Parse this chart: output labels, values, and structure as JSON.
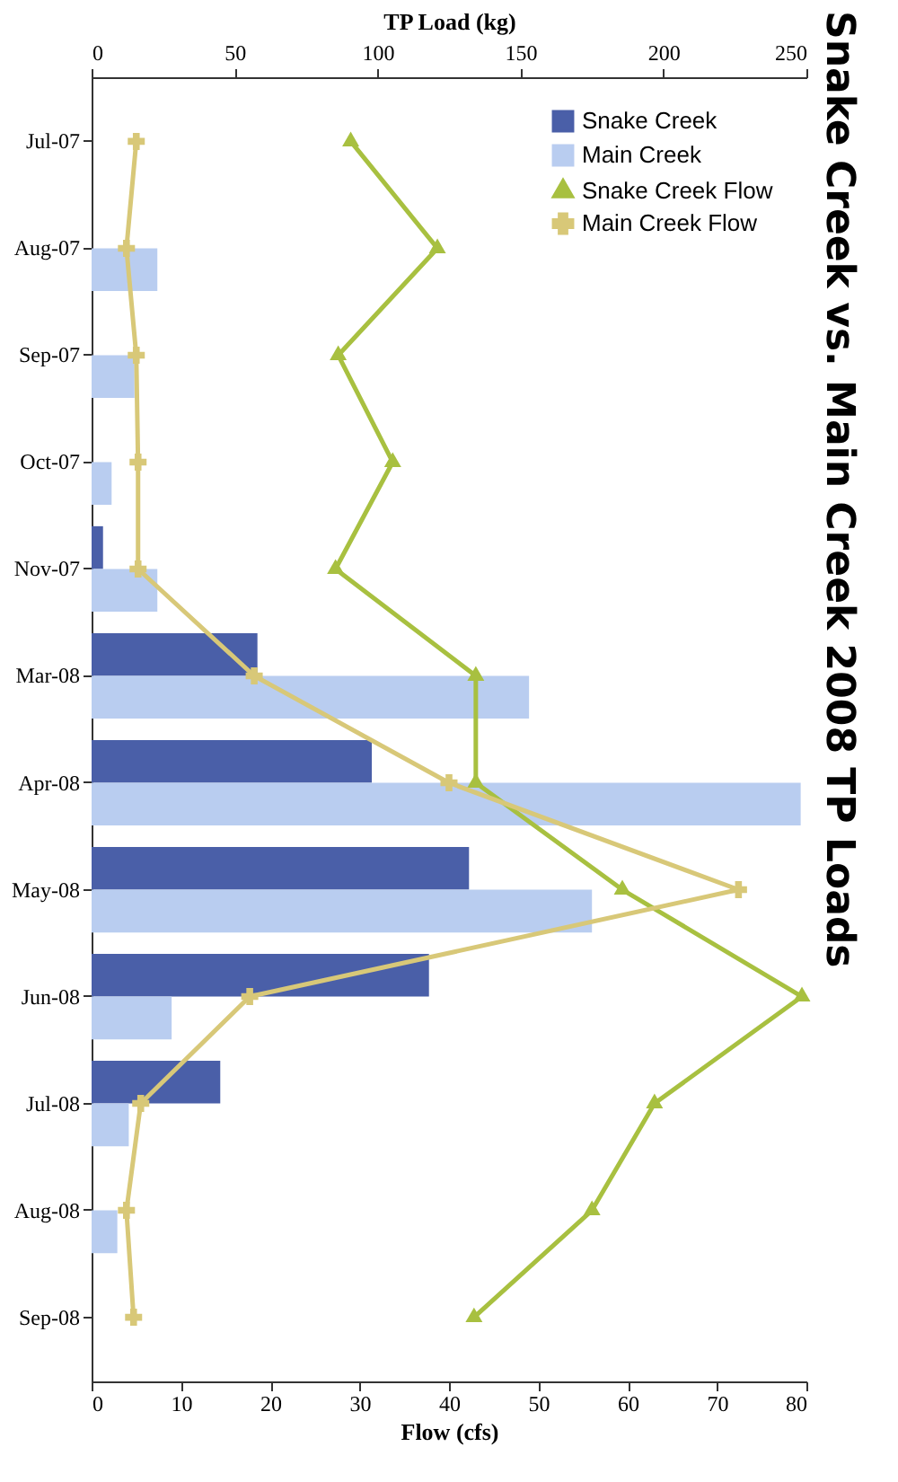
{
  "chart_data": {
    "type": "bar",
    "orientation": "horizontal",
    "title": "Snake Creek vs. Main Creek 2008 TP Loads",
    "xlabel": "Flow (cfs)",
    "x2label": "TP Load (kg)",
    "categories": [
      "Jul-07",
      "Aug-07",
      "Sep-07",
      "Oct-07",
      "Nov-07",
      "Mar-08",
      "Apr-08",
      "May-08",
      "Jun-08",
      "Jul-08",
      "Aug-08",
      "Sep-08"
    ],
    "xlim": [
      0,
      80
    ],
    "xticks": [
      0,
      10,
      20,
      30,
      40,
      50,
      60,
      70,
      80
    ],
    "x2lim": [
      0,
      250
    ],
    "x2ticks": [
      0,
      50,
      100,
      150,
      200,
      250
    ],
    "legend": "top right",
    "series": [
      {
        "name": "Snake Creek",
        "axis": "x2",
        "color": "#4a5fa8",
        "values": [
          0,
          0,
          0,
          0,
          4,
          58,
          98,
          132,
          118,
          45,
          0,
          0
        ]
      },
      {
        "name": "Main Creek",
        "axis": "x2",
        "color": "#b9cdf0",
        "values": [
          0,
          23,
          15,
          7,
          23,
          153,
          248,
          175,
          28,
          13,
          9,
          0
        ]
      },
      {
        "name": "Snake Creek Flow",
        "type": "line",
        "marker": "triangle",
        "color": "#a8c040",
        "values": [
          29,
          38.7,
          27.6,
          33.7,
          27.3,
          43,
          43,
          59.4,
          79.5,
          63,
          56,
          42.8
        ]
      },
      {
        "name": "Main Creek Flow",
        "type": "line",
        "marker": "cross",
        "color": "#d8c878",
        "values": [
          5,
          3.9,
          5,
          5.2,
          5.2,
          18.2,
          40,
          72.4,
          17.7,
          5.5,
          3.9,
          4.7
        ]
      }
    ]
  }
}
